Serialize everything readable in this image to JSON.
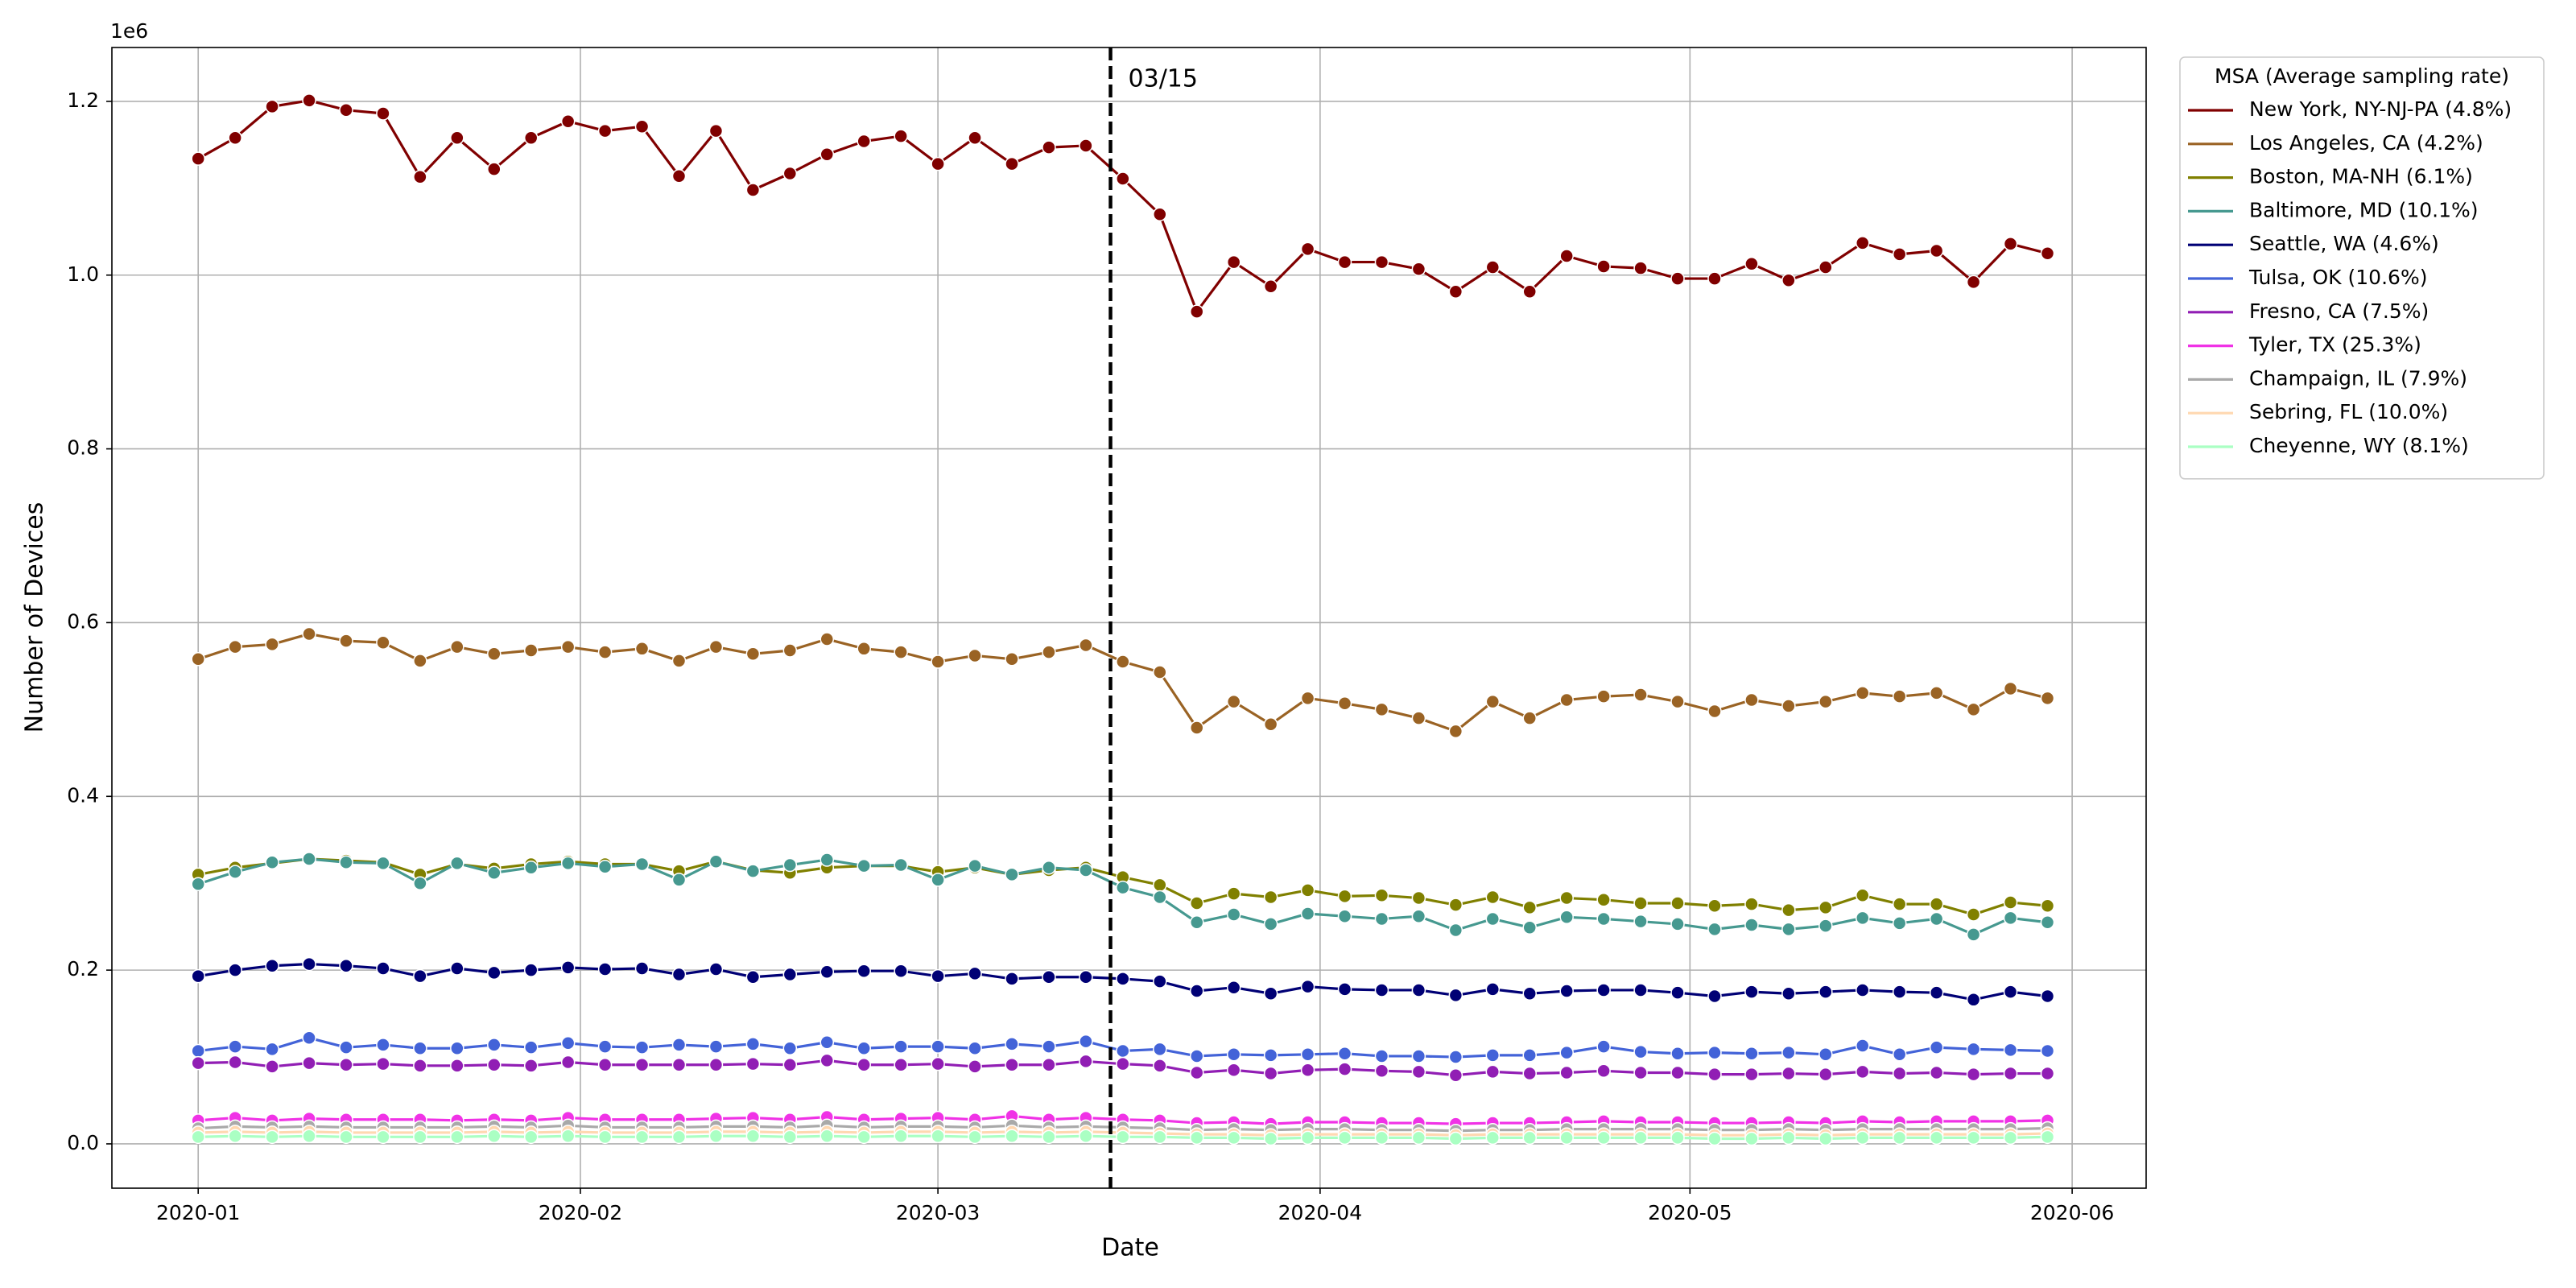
{
  "chart_data": {
    "type": "line",
    "offset_label": "1e6",
    "ylabel": "Number of Devices",
    "xlabel": "Date",
    "legend_title": "MSA (Average sampling rate)",
    "legend": "right",
    "grid": true,
    "vline": {
      "x": "2020-03-15",
      "label": "03/15"
    },
    "xlim": [
      "2019-12-25",
      "2020-06-07"
    ],
    "xticks": [
      {
        "value": "2020-01-01",
        "label": "2020-01"
      },
      {
        "value": "2020-02-01",
        "label": "2020-02"
      },
      {
        "value": "2020-03-01",
        "label": "2020-03"
      },
      {
        "value": "2020-04-01",
        "label": "2020-04"
      },
      {
        "value": "2020-05-01",
        "label": "2020-05"
      },
      {
        "value": "2020-06-01",
        "label": "2020-06"
      }
    ],
    "ylim": [
      -51000,
      1262000
    ],
    "yticks": [
      {
        "value": 0,
        "label": "0.0"
      },
      {
        "value": 200000,
        "label": "0.2"
      },
      {
        "value": 400000,
        "label": "0.4"
      },
      {
        "value": 600000,
        "label": "0.6"
      },
      {
        "value": 800000,
        "label": "0.8"
      },
      {
        "value": 1000000,
        "label": "1.0"
      },
      {
        "value": 1200000,
        "label": "1.2"
      }
    ],
    "x": [
      "2020-01-01",
      "2020-01-04",
      "2020-01-07",
      "2020-01-10",
      "2020-01-13",
      "2020-01-16",
      "2020-01-19",
      "2020-01-22",
      "2020-01-25",
      "2020-01-28",
      "2020-01-31",
      "2020-02-03",
      "2020-02-06",
      "2020-02-09",
      "2020-02-12",
      "2020-02-15",
      "2020-02-18",
      "2020-02-21",
      "2020-02-24",
      "2020-02-27",
      "2020-03-01",
      "2020-03-04",
      "2020-03-07",
      "2020-03-10",
      "2020-03-13",
      "2020-03-16",
      "2020-03-19",
      "2020-03-22",
      "2020-03-25",
      "2020-03-28",
      "2020-03-31",
      "2020-04-03",
      "2020-04-06",
      "2020-04-09",
      "2020-04-12",
      "2020-04-15",
      "2020-04-18",
      "2020-04-21",
      "2020-04-24",
      "2020-04-27",
      "2020-04-30",
      "2020-05-03",
      "2020-05-06",
      "2020-05-09",
      "2020-05-12",
      "2020-05-15",
      "2020-05-18",
      "2020-05-21",
      "2020-05-24",
      "2020-05-27",
      "2020-05-30"
    ],
    "series": [
      {
        "name": "New York, NY-NJ-PA (4.8%)",
        "color": "#800000",
        "values": [
          1134000,
          1158000,
          1194000,
          1201000,
          1190000,
          1186000,
          1113000,
          1158000,
          1122000,
          1158000,
          1177000,
          1166000,
          1171000,
          1114000,
          1166000,
          1098000,
          1117000,
          1139000,
          1154000,
          1160000,
          1128000,
          1158000,
          1128000,
          1147000,
          1149000,
          1111000,
          1070000,
          958000,
          1015000,
          987000,
          1030000,
          1015000,
          1015000,
          1007000,
          981000,
          1009000,
          981000,
          1022000,
          1010000,
          1008000,
          996000,
          996000,
          1013000,
          994000,
          1009000,
          1037000,
          1024000,
          1028000,
          992000,
          1036000,
          1025000
        ]
      },
      {
        "name": "Los Angeles, CA (4.2%)",
        "color": "#9a6324",
        "values": [
          558000,
          572000,
          575000,
          587000,
          579000,
          577000,
          556000,
          572000,
          564000,
          568000,
          572000,
          566000,
          570000,
          556000,
          572000,
          564000,
          568000,
          581000,
          570000,
          566000,
          555000,
          562000,
          558000,
          566000,
          574000,
          555000,
          543000,
          479000,
          509000,
          483000,
          513000,
          507000,
          500000,
          490000,
          475000,
          509000,
          490000,
          511000,
          515000,
          517000,
          509000,
          498000,
          511000,
          504000,
          509000,
          519000,
          515000,
          519000,
          500000,
          524000,
          513000
        ]
      },
      {
        "name": "Boston, MA-NH (6.1%)",
        "color": "#808000",
        "values": [
          310000,
          318000,
          323000,
          328000,
          326000,
          324000,
          310000,
          322000,
          317000,
          322000,
          325000,
          322000,
          322000,
          314000,
          325000,
          315000,
          312000,
          318000,
          320000,
          320000,
          313000,
          318000,
          310000,
          315000,
          318000,
          307000,
          298000,
          277000,
          288000,
          284000,
          292000,
          285000,
          286000,
          283000,
          275000,
          284000,
          272000,
          283000,
          281000,
          277000,
          277000,
          274000,
          276000,
          269000,
          272000,
          286000,
          276000,
          276000,
          264000,
          278000,
          274000
        ]
      },
      {
        "name": "Baltimore, MD (10.1%)",
        "color": "#469990",
        "values": [
          299000,
          313000,
          324000,
          328000,
          324000,
          323000,
          300000,
          323000,
          312000,
          318000,
          323000,
          319000,
          322000,
          304000,
          325000,
          314000,
          321000,
          327000,
          320000,
          321000,
          304000,
          320000,
          310000,
          318000,
          315000,
          295000,
          284000,
          255000,
          264000,
          253000,
          265000,
          262000,
          259000,
          262000,
          246000,
          259000,
          249000,
          261000,
          259000,
          256000,
          253000,
          247000,
          252000,
          247000,
          251000,
          260000,
          254000,
          259000,
          241000,
          260000,
          255000
        ]
      },
      {
        "name": "Seattle, WA (4.6%)",
        "color": "#000075",
        "values": [
          193000,
          200000,
          205000,
          207000,
          205000,
          202000,
          193000,
          202000,
          197000,
          200000,
          203000,
          201000,
          202000,
          195000,
          201000,
          192000,
          195000,
          198000,
          199000,
          199000,
          193000,
          196000,
          190000,
          192000,
          192000,
          190000,
          187000,
          176000,
          180000,
          173000,
          181000,
          178000,
          177000,
          177000,
          171000,
          178000,
          173000,
          176000,
          177000,
          177000,
          174000,
          170000,
          175000,
          173000,
          175000,
          177000,
          175000,
          174000,
          166000,
          175000,
          170000
        ]
      },
      {
        "name": "Tulsa, OK (10.6%)",
        "color": "#4363d8",
        "values": [
          107000,
          112000,
          109000,
          122000,
          111000,
          114000,
          110000,
          110000,
          114000,
          111000,
          116000,
          112000,
          111000,
          114000,
          112000,
          115000,
          110000,
          117000,
          110000,
          112000,
          112000,
          110000,
          115000,
          112000,
          118000,
          107000,
          109000,
          101000,
          103000,
          102000,
          103000,
          104000,
          101000,
          101000,
          100000,
          102000,
          102000,
          105000,
          112000,
          106000,
          104000,
          105000,
          104000,
          105000,
          103000,
          113000,
          103000,
          111000,
          109000,
          108000,
          107000
        ]
      },
      {
        "name": "Fresno, CA (7.5%)",
        "color": "#911eb4",
        "values": [
          93000,
          94000,
          89000,
          93000,
          91000,
          92000,
          90000,
          90000,
          91000,
          90000,
          94000,
          91000,
          91000,
          91000,
          91000,
          92000,
          91000,
          96000,
          91000,
          91000,
          92000,
          89000,
          91000,
          91000,
          95000,
          92000,
          90000,
          82000,
          85000,
          81000,
          85000,
          86000,
          84000,
          83000,
          79000,
          83000,
          81000,
          82000,
          84000,
          82000,
          82000,
          80000,
          80000,
          81000,
          80000,
          83000,
          81000,
          82000,
          80000,
          81000,
          81000
        ]
      },
      {
        "name": "Tyler, TX (25.3%)",
        "color": "#f032e6",
        "values": [
          27000,
          30000,
          27000,
          29000,
          28000,
          28000,
          28000,
          27000,
          28000,
          27000,
          30000,
          28000,
          28000,
          28000,
          29000,
          30000,
          28000,
          31000,
          28000,
          29000,
          30000,
          28000,
          32000,
          28000,
          30000,
          28000,
          27000,
          24000,
          25000,
          23000,
          25000,
          25000,
          24000,
          24000,
          23000,
          24000,
          24000,
          25000,
          26000,
          25000,
          25000,
          24000,
          24000,
          25000,
          24000,
          26000,
          25000,
          26000,
          26000,
          26000,
          27000
        ]
      },
      {
        "name": "Champaign, IL (7.9%)",
        "color": "#a9a9a9",
        "values": [
          18000,
          20000,
          19000,
          20000,
          19000,
          19000,
          19000,
          19000,
          20000,
          19000,
          21000,
          19000,
          19000,
          19000,
          20000,
          20000,
          19000,
          21000,
          19000,
          20000,
          20000,
          19000,
          21000,
          19000,
          20000,
          19000,
          18000,
          16000,
          17000,
          16000,
          17000,
          17000,
          16000,
          16000,
          15000,
          16000,
          16000,
          17000,
          17000,
          17000,
          17000,
          16000,
          16000,
          17000,
          16000,
          17000,
          17000,
          17000,
          17000,
          17000,
          18000
        ]
      },
      {
        "name": "Sebring, FL (10.0%)",
        "color": "#ffd8b1",
        "values": [
          13000,
          14000,
          13000,
          14000,
          13000,
          13000,
          13000,
          13000,
          14000,
          13000,
          14000,
          13000,
          13000,
          13000,
          14000,
          14000,
          13000,
          14000,
          13000,
          14000,
          14000,
          13000,
          14000,
          13000,
          14000,
          13000,
          12000,
          11000,
          11000,
          10000,
          11000,
          11000,
          11000,
          11000,
          10000,
          11000,
          11000,
          11000,
          11000,
          11000,
          11000,
          10000,
          10000,
          11000,
          10000,
          11000,
          11000,
          11000,
          11000,
          11000,
          12000
        ]
      },
      {
        "name": "Cheyenne, WY (8.1%)",
        "color": "#aaffc3",
        "values": [
          8000,
          9000,
          8000,
          9000,
          8000,
          8000,
          8000,
          8000,
          9000,
          8000,
          9000,
          8000,
          8000,
          8000,
          9000,
          9000,
          8000,
          9000,
          8000,
          9000,
          9000,
          8000,
          9000,
          8000,
          9000,
          8000,
          8000,
          7000,
          7000,
          6000,
          7000,
          7000,
          7000,
          7000,
          6000,
          7000,
          7000,
          7000,
          7000,
          7000,
          7000,
          6000,
          6000,
          7000,
          6000,
          7000,
          7000,
          7000,
          7000,
          7000,
          8000
        ]
      }
    ]
  }
}
